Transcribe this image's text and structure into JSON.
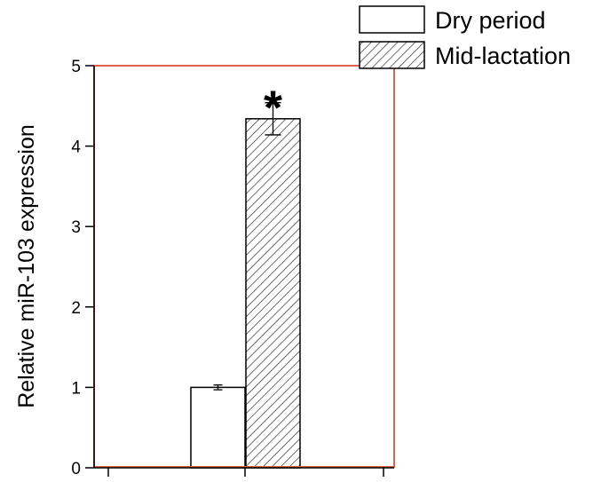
{
  "chart_data": {
    "type": "bar",
    "ylabel": "Relative miR-103 expression",
    "xlabel": "",
    "ylim": [
      0,
      5
    ],
    "yticks": [
      0,
      1,
      2,
      3,
      4,
      5
    ],
    "categories": [
      ""
    ],
    "series": [
      {
        "name": "Dry period",
        "values": [
          1.0
        ],
        "error": [
          0.03
        ],
        "fill": "white"
      },
      {
        "name": "Mid-lactation",
        "values": [
          4.34
        ],
        "error": [
          0.2
        ],
        "fill": "hatched"
      }
    ],
    "annotations": [
      {
        "text": "*",
        "series": "Mid-lactation",
        "category": 0
      }
    ],
    "legend_position": "top-right",
    "frame_color": "#e0604a",
    "grid": false
  }
}
